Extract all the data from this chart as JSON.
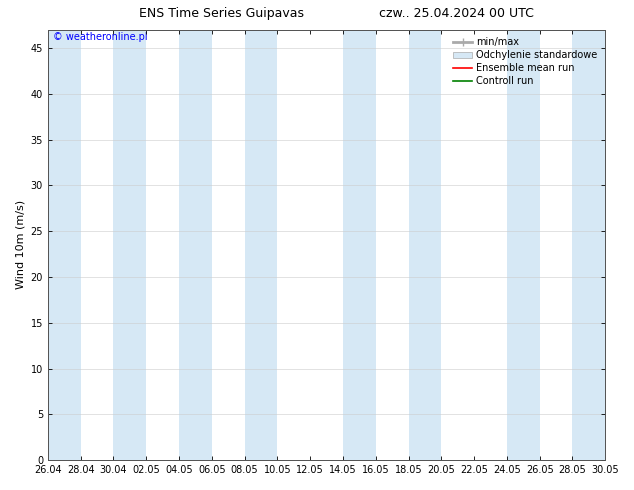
{
  "title_left": "ENS Time Series Guipavas",
  "title_right": "czw.. 25.04.2024 00 UTC",
  "ylabel": "Wind 10m (m/s)",
  "watermark": "© weatheronline.pl",
  "xlim_start": 0,
  "xlim_end": 34,
  "ylim": [
    0,
    47
  ],
  "yticks": [
    0,
    5,
    10,
    15,
    20,
    25,
    30,
    35,
    40,
    45
  ],
  "xtick_labels": [
    "26.04",
    "28.04",
    "30.04",
    "02.05",
    "04.05",
    "06.05",
    "08.05",
    "10.05",
    "12.05",
    "14.05",
    "16.05",
    "18.05",
    "20.05",
    "22.05",
    "24.05",
    "26.05",
    "28.05",
    "30.05"
  ],
  "xtick_positions": [
    0,
    2,
    4,
    6,
    8,
    10,
    12,
    14,
    16,
    18,
    20,
    22,
    24,
    26,
    28,
    30,
    32,
    34
  ],
  "shaded_columns": [
    [
      0.0,
      2.0
    ],
    [
      4.0,
      6.0
    ],
    [
      8.0,
      10.0
    ],
    [
      12.0,
      14.0
    ],
    [
      18.0,
      20.0
    ],
    [
      22.0,
      24.0
    ],
    [
      28.0,
      30.0
    ],
    [
      32.0,
      34.0
    ]
  ],
  "shaded_color": "#d6e8f5",
  "legend_items": [
    {
      "label": "min/max",
      "color": "#aaaaaa",
      "style": "hbar"
    },
    {
      "label": "Odchylenie standardowe",
      "color": "#d6e8f5",
      "style": "hbar"
    },
    {
      "label": "Ensemble mean run",
      "color": "#ff0000",
      "style": "line"
    },
    {
      "label": "Controll run",
      "color": "#008000",
      "style": "line"
    }
  ],
  "background_color": "#ffffff",
  "title_fontsize": 9,
  "tick_fontsize": 7,
  "ylabel_fontsize": 8,
  "legend_fontsize": 7,
  "watermark_fontsize": 7
}
